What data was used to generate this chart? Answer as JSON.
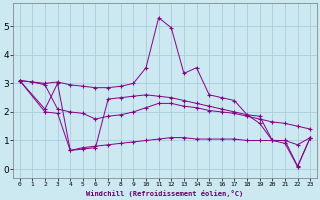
{
  "background_color": "#cce8f0",
  "grid_color": "#aaccda",
  "line_color": "#880088",
  "xlabel": "Windchill (Refroidissement éolien,°C)",
  "xlim": [
    -0.5,
    23.5
  ],
  "ylim": [
    -0.3,
    5.8
  ],
  "xticks": [
    0,
    1,
    2,
    3,
    4,
    5,
    6,
    7,
    8,
    9,
    10,
    11,
    12,
    13,
    14,
    15,
    16,
    17,
    18,
    19,
    20,
    21,
    22,
    23
  ],
  "yticks": [
    0,
    1,
    2,
    3,
    4,
    5
  ],
  "series1_x": [
    0,
    1,
    2,
    3,
    4,
    5,
    6,
    7,
    8,
    9,
    10,
    11,
    12,
    13,
    14,
    15,
    16,
    17,
    18,
    19,
    20,
    21,
    22,
    23
  ],
  "series1_y": [
    3.1,
    3.05,
    3.0,
    3.05,
    2.95,
    2.9,
    2.85,
    2.85,
    2.9,
    3.0,
    3.55,
    5.3,
    4.95,
    3.35,
    3.55,
    2.6,
    2.5,
    2.4,
    1.9,
    1.6,
    1.0,
    1.0,
    0.85,
    1.1
  ],
  "series2_x": [
    0,
    1,
    2,
    3,
    4,
    5,
    6,
    7,
    8,
    9,
    10,
    11,
    12,
    13,
    14,
    15,
    16,
    17,
    18,
    19,
    20,
    21,
    22,
    23
  ],
  "series2_y": [
    3.1,
    3.05,
    2.95,
    2.1,
    2.0,
    1.95,
    1.75,
    1.85,
    1.9,
    2.0,
    2.15,
    2.3,
    2.3,
    2.2,
    2.15,
    2.05,
    2.0,
    1.95,
    1.85,
    1.75,
    1.65,
    1.6,
    1.5,
    1.4
  ],
  "series3_x": [
    0,
    2,
    3,
    4,
    5,
    6,
    7,
    8,
    9,
    10,
    11,
    12,
    13,
    14,
    15,
    16,
    17,
    18,
    19,
    20,
    21,
    22,
    23
  ],
  "series3_y": [
    3.1,
    2.1,
    3.0,
    0.65,
    0.7,
    0.75,
    2.45,
    2.5,
    2.55,
    2.6,
    2.55,
    2.5,
    2.4,
    2.3,
    2.2,
    2.1,
    2.0,
    1.9,
    1.85,
    1.0,
    0.9,
    0.08,
    1.1
  ],
  "series4_x": [
    0,
    2,
    3,
    4,
    5,
    6,
    7,
    8,
    9,
    10,
    11,
    12,
    13,
    14,
    15,
    16,
    17,
    18,
    19,
    20,
    21,
    22,
    23
  ],
  "series4_y": [
    3.1,
    2.0,
    1.95,
    0.65,
    0.75,
    0.8,
    0.85,
    0.9,
    0.95,
    1.0,
    1.05,
    1.1,
    1.1,
    1.05,
    1.05,
    1.05,
    1.05,
    1.0,
    1.0,
    1.0,
    1.0,
    0.1,
    1.1
  ]
}
